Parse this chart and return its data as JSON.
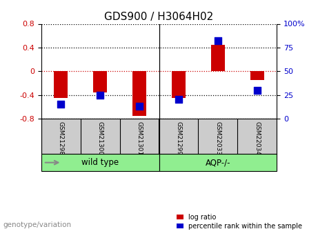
{
  "title": "GDS900 / H3064H02",
  "samples": [
    "GSM21298",
    "GSM21300",
    "GSM21301",
    "GSM21299",
    "GSM22033",
    "GSM22034"
  ],
  "log_ratios": [
    -0.45,
    -0.36,
    -0.75,
    -0.45,
    0.45,
    -0.15
  ],
  "percentile_ranks": [
    15,
    25,
    13,
    20,
    82,
    30
  ],
  "ylim_left": [
    -0.8,
    0.8
  ],
  "ylim_right": [
    0,
    100
  ],
  "yticks_left": [
    -0.8,
    -0.4,
    0.0,
    0.4,
    0.8
  ],
  "yticks_right": [
    0,
    25,
    50,
    75,
    100
  ],
  "bar_color": "#cc0000",
  "dot_color": "#0000cc",
  "zero_line_color": "#cc0000",
  "grid_color": "#000000",
  "legend_log_ratio": "log ratio",
  "legend_percentile": "percentile rank within the sample",
  "label_genotype": "genotype/variation",
  "bar_width": 0.35,
  "dot_size": 55,
  "group1_label": "wild type",
  "group2_label": "AQP-/-",
  "group_color": "#90ee90",
  "group_separator_idx": 2.5
}
